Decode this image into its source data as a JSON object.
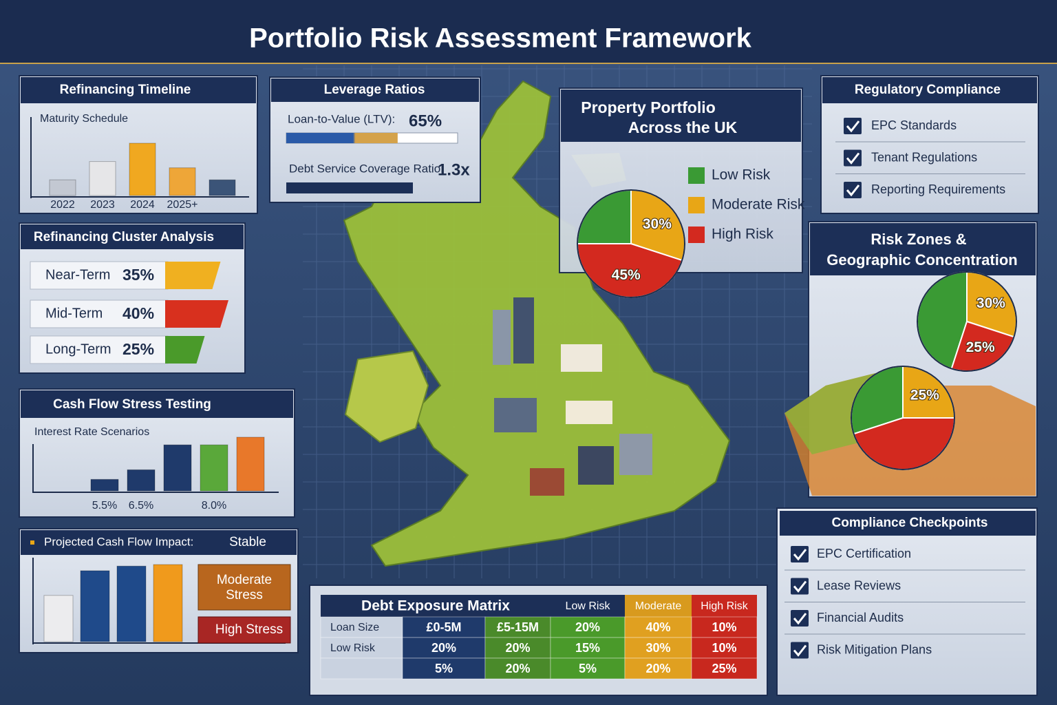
{
  "title": "Portfolio Risk Assessment Framework",
  "refinancing_timeline": {
    "title": "Refinancing Timeline",
    "subtitle": "Maturity Schedule",
    "type": "bar",
    "categories": [
      "2022",
      "2023",
      "2024",
      "2025+",
      null
    ],
    "values": [
      30,
      65,
      100,
      53,
      30
    ],
    "colors": [
      "#c3c8d2",
      "#e6e6e8",
      "#f0a820",
      "#eea638",
      "#3b5478"
    ]
  },
  "leverage_ratios": {
    "title": "Leverage Ratios",
    "ltv_label": "Loan-to-Value (LTV):",
    "ltv": {
      "value": 65,
      "label": "65%"
    },
    "dscr_label": "Debt Service Coverage Ratio:",
    "dscr": {
      "value": 1.3,
      "label": "1.3x"
    }
  },
  "property_portfolio": {
    "title_lines": [
      "Property Portfolio",
      "Across the UK"
    ],
    "chart": {
      "type": "pie",
      "categories": [
        "Low Risk",
        "Moderate Risk",
        "High Risk"
      ],
      "values": [
        25,
        30,
        45
      ],
      "value_labels": [
        null,
        "30%",
        "45%"
      ],
      "colors": [
        "#3a9a34",
        "#e8a616",
        "#d3291f"
      ]
    }
  },
  "regulatory_compliance": {
    "title": "Regulatory Compliance",
    "items": [
      "EPC Standards",
      "Tenant Regulations",
      "Reporting Requirements"
    ]
  },
  "refinancing_cluster": {
    "title": "Refinancing Cluster Analysis",
    "categories": [
      "Near-Term",
      "Mid-Term",
      "Long-Term"
    ],
    "values": [
      35,
      40,
      25
    ],
    "value_labels": [
      "35%",
      "40%",
      "25%"
    ],
    "colors": [
      "#f0b020",
      "#d8301e",
      "#4a9a2a"
    ]
  },
  "cash_flow_stress": {
    "title": "Cash Flow Stress Testing",
    "subtitle": "Interest Rate Scenarios",
    "type": "bar",
    "categories": [
      "5.5%",
      "6.5%",
      null,
      "8.0%",
      null
    ],
    "values": [
      12,
      22,
      48,
      48,
      56
    ],
    "colors": [
      "#1f3a6b",
      "#1f3a6b",
      "#1f3a6b",
      "#5aa83a",
      "#e8782a"
    ]
  },
  "projected_cash_flow": {
    "title": "Projected Cash Flow Impact:",
    "status": "Stable",
    "type": "bar",
    "values": [
      60,
      92,
      98,
      100
    ],
    "colors": [
      "#ececee",
      "#1f4a8a",
      "#1f4a8a",
      "#f09a1c"
    ],
    "scenarios": [
      {
        "lines": [
          "Moderate",
          "Stress"
        ]
      },
      {
        "lines": [
          "High Stress"
        ]
      }
    ]
  },
  "debt_exposure_matrix": {
    "title": "Debt Exposure Matrix",
    "headers": [
      "Low Risk",
      "Moderate",
      "High Risk"
    ],
    "rows": [
      [
        "Loan Size",
        "£0-5M",
        "£5-15M",
        "20%",
        "40%",
        "10%"
      ],
      [
        "Low Risk",
        "20%",
        "20%",
        "15%",
        "30%",
        "10%"
      ],
      [
        null,
        "5%",
        "20%",
        "5%",
        "20%",
        "25%"
      ]
    ]
  },
  "risk_zones": {
    "title_lines": [
      "Risk Zones &",
      "Geographic Concentration"
    ],
    "pies": [
      {
        "type": "pie",
        "values": [
          45,
          30,
          25
        ],
        "value_labels": [
          null,
          "30%",
          "25%"
        ],
        "colors": [
          "#3a9a34",
          "#e8a616",
          "#d3291f"
        ]
      },
      {
        "type": "pie",
        "values": [
          30,
          25,
          45
        ],
        "value_labels": [
          null,
          "25%",
          null
        ],
        "colors": [
          "#3a9a34",
          "#e8a616",
          "#d3291f"
        ]
      }
    ]
  },
  "compliance_checkpoints": {
    "title": "Compliance Checkpoints",
    "items": [
      "EPC Certification",
      "Lease Reviews",
      "Financial Audits",
      "Risk Mitigation Plans"
    ]
  }
}
